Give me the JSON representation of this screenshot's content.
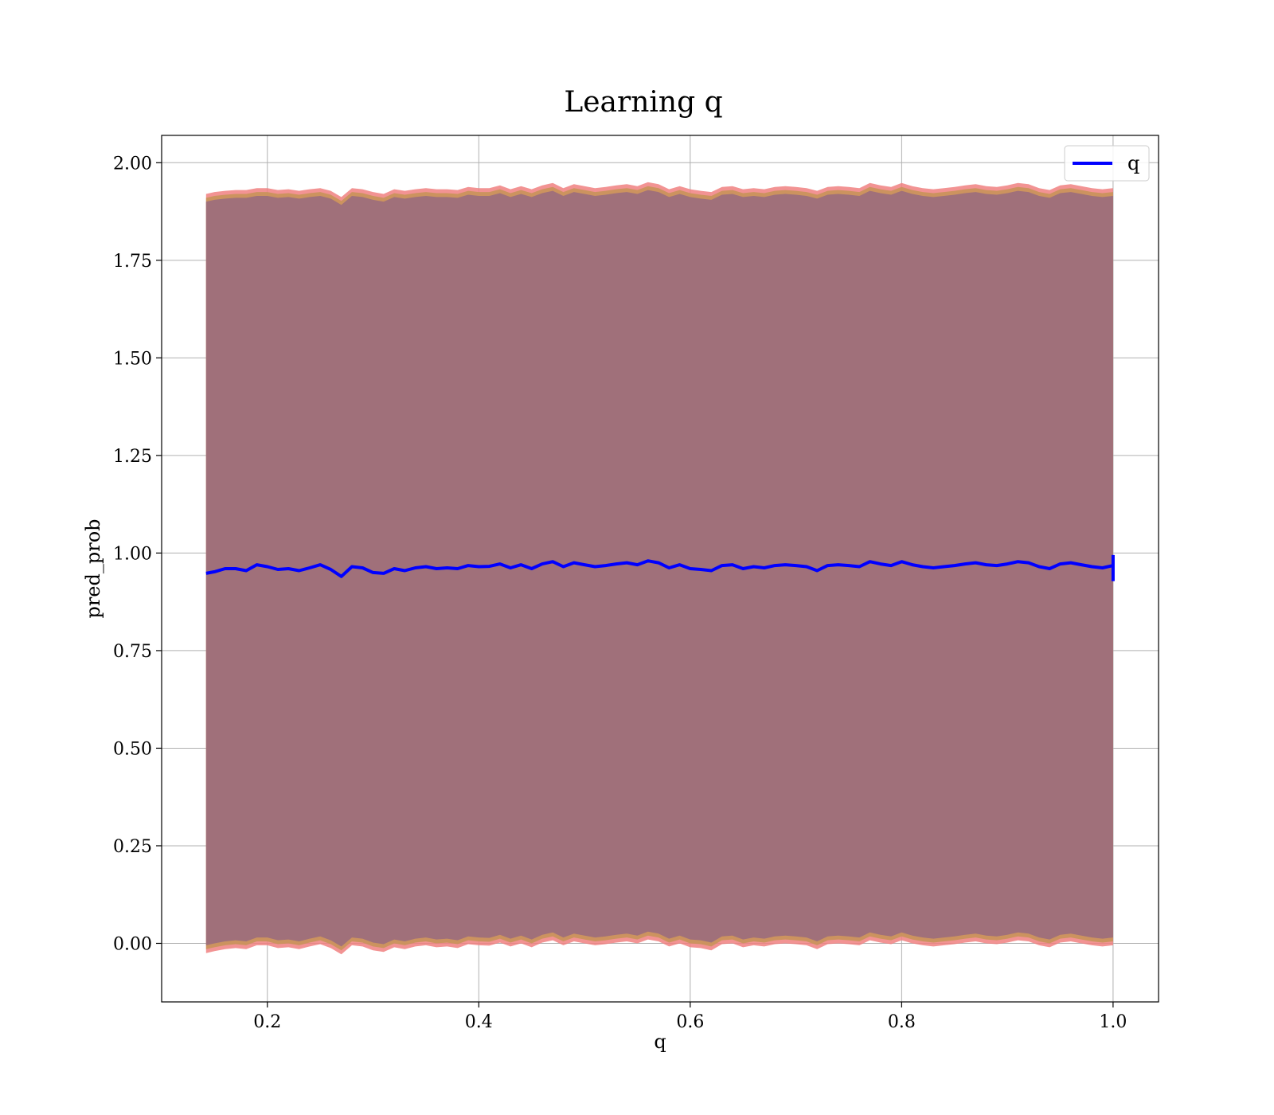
{
  "chart_data": {
    "type": "line",
    "title": "Learning q",
    "xlabel": "q",
    "ylabel": "pred_prob",
    "xlim": [
      0.1,
      1.043
    ],
    "ylim": [
      -0.15,
      2.07
    ],
    "x_ticks": [
      0.2,
      0.4,
      0.6,
      0.8,
      1.0
    ],
    "x_tick_labels": [
      "0.2",
      "0.4",
      "0.6",
      "0.8",
      "1.0"
    ],
    "y_ticks": [
      0.0,
      0.25,
      0.5,
      0.75,
      1.0,
      1.25,
      1.5,
      1.75,
      2.0
    ],
    "y_tick_labels": [
      "0.00",
      "0.25",
      "0.50",
      "0.75",
      "1.00",
      "1.25",
      "1.50",
      "1.75",
      "2.00"
    ],
    "grid": true,
    "legend": {
      "position": "top-right",
      "entries": [
        "q"
      ]
    },
    "colors": {
      "line": "#0000ff",
      "band_outer": "#f08080",
      "band_mid": "#c8945a",
      "band_inner": "#a0707a",
      "grid": "#b0b0b0"
    },
    "series": [
      {
        "name": "q",
        "x": [
          0.142,
          0.15,
          0.16,
          0.17,
          0.18,
          0.19,
          0.2,
          0.21,
          0.22,
          0.23,
          0.24,
          0.25,
          0.26,
          0.27,
          0.28,
          0.29,
          0.3,
          0.31,
          0.32,
          0.33,
          0.34,
          0.35,
          0.36,
          0.37,
          0.38,
          0.39,
          0.4,
          0.41,
          0.42,
          0.43,
          0.44,
          0.45,
          0.46,
          0.47,
          0.48,
          0.49,
          0.5,
          0.51,
          0.52,
          0.53,
          0.54,
          0.55,
          0.56,
          0.57,
          0.58,
          0.59,
          0.6,
          0.61,
          0.62,
          0.63,
          0.64,
          0.65,
          0.66,
          0.67,
          0.68,
          0.69,
          0.7,
          0.71,
          0.72,
          0.73,
          0.74,
          0.75,
          0.76,
          0.77,
          0.78,
          0.79,
          0.8,
          0.81,
          0.82,
          0.83,
          0.84,
          0.85,
          0.86,
          0.87,
          0.88,
          0.89,
          0.9,
          0.91,
          0.92,
          0.93,
          0.94,
          0.95,
          0.96,
          0.97,
          0.98,
          0.99,
          1.0
        ],
        "y": [
          0.948,
          0.952,
          0.96,
          0.96,
          0.955,
          0.97,
          0.965,
          0.958,
          0.96,
          0.955,
          0.962,
          0.97,
          0.958,
          0.94,
          0.965,
          0.962,
          0.95,
          0.948,
          0.96,
          0.955,
          0.962,
          0.965,
          0.96,
          0.962,
          0.96,
          0.968,
          0.965,
          0.966,
          0.972,
          0.962,
          0.97,
          0.96,
          0.972,
          0.978,
          0.965,
          0.975,
          0.97,
          0.965,
          0.968,
          0.972,
          0.975,
          0.97,
          0.98,
          0.975,
          0.962,
          0.97,
          0.96,
          0.958,
          0.955,
          0.968,
          0.97,
          0.96,
          0.965,
          0.962,
          0.968,
          0.97,
          0.968,
          0.965,
          0.955,
          0.968,
          0.97,
          0.968,
          0.965,
          0.978,
          0.972,
          0.968,
          0.978,
          0.97,
          0.965,
          0.962,
          0.965,
          0.968,
          0.972,
          0.975,
          0.97,
          0.968,
          0.972,
          0.978,
          0.975,
          0.965,
          0.96,
          0.972,
          0.975,
          0.97,
          0.965,
          0.962,
          0.968
        ],
        "upper": [
          1.92,
          1.925,
          1.928,
          1.93,
          1.93,
          1.935,
          1.935,
          1.93,
          1.932,
          1.928,
          1.932,
          1.935,
          1.928,
          1.912,
          1.935,
          1.932,
          1.925,
          1.92,
          1.932,
          1.928,
          1.932,
          1.935,
          1.932,
          1.932,
          1.93,
          1.938,
          1.935,
          1.935,
          1.942,
          1.932,
          1.94,
          1.932,
          1.942,
          1.948,
          1.935,
          1.945,
          1.94,
          1.935,
          1.938,
          1.942,
          1.945,
          1.94,
          1.95,
          1.945,
          1.932,
          1.94,
          1.932,
          1.928,
          1.925,
          1.938,
          1.94,
          1.932,
          1.935,
          1.932,
          1.938,
          1.94,
          1.938,
          1.935,
          1.928,
          1.938,
          1.94,
          1.938,
          1.935,
          1.948,
          1.942,
          1.938,
          1.948,
          1.94,
          1.935,
          1.932,
          1.935,
          1.938,
          1.942,
          1.945,
          1.94,
          1.938,
          1.942,
          1.948,
          1.945,
          1.935,
          1.93,
          1.942,
          1.945,
          1.94,
          1.935,
          1.932,
          1.935
        ],
        "lower": [
          -0.025,
          -0.02,
          -0.015,
          -0.012,
          -0.015,
          -0.005,
          -0.005,
          -0.012,
          -0.01,
          -0.015,
          -0.008,
          -0.002,
          -0.012,
          -0.028,
          -0.005,
          -0.008,
          -0.018,
          -0.022,
          -0.01,
          -0.015,
          -0.008,
          -0.005,
          -0.01,
          -0.008,
          -0.012,
          -0.002,
          -0.005,
          -0.006,
          0.002,
          -0.008,
          0.0,
          -0.01,
          0.002,
          0.008,
          -0.005,
          0.005,
          0.0,
          -0.005,
          -0.002,
          0.002,
          0.005,
          0.0,
          0.01,
          0.005,
          -0.008,
          0.0,
          -0.01,
          -0.012,
          -0.018,
          -0.002,
          0.0,
          -0.01,
          -0.005,
          -0.008,
          -0.002,
          0.0,
          -0.002,
          -0.005,
          -0.015,
          -0.002,
          0.0,
          -0.002,
          -0.005,
          0.008,
          0.002,
          -0.002,
          0.008,
          0.0,
          -0.005,
          -0.008,
          -0.005,
          -0.002,
          0.002,
          0.005,
          0.0,
          -0.002,
          0.002,
          0.008,
          0.005,
          -0.005,
          -0.01,
          0.002,
          0.005,
          0.0,
          -0.005,
          -0.008,
          -0.005
        ]
      }
    ]
  }
}
